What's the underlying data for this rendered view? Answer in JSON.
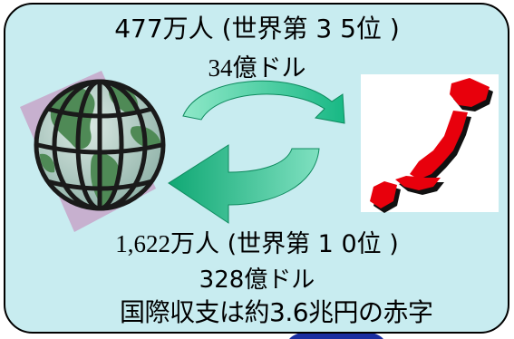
{
  "outbound": {
    "count_prefix": "477",
    "count_rest": "万人 (世界第 3 5位 )",
    "amount_prefix": "34",
    "amount_rest": "億ドル"
  },
  "inbound": {
    "count_prefix": "1,622",
    "count_rest": "万人 (世界第 1 0位 )",
    "amount": "328億ドル"
  },
  "balance_text": "国際収支は約3.6兆円の赤字",
  "icons": {
    "globe": "globe-icon",
    "japan": "japan-map-icon",
    "arrow_top": "curved-arrow-right-icon",
    "arrow_bottom": "curved-arrow-left-icon"
  },
  "colors": {
    "panel_background": "#c8ecf0",
    "arrow_green": "#20c08a",
    "japan_red": "#e8000c",
    "globe_land": "#4f8a56",
    "globe_sea": "#b7d0c8",
    "accent_blue": "#1a2ea0"
  }
}
